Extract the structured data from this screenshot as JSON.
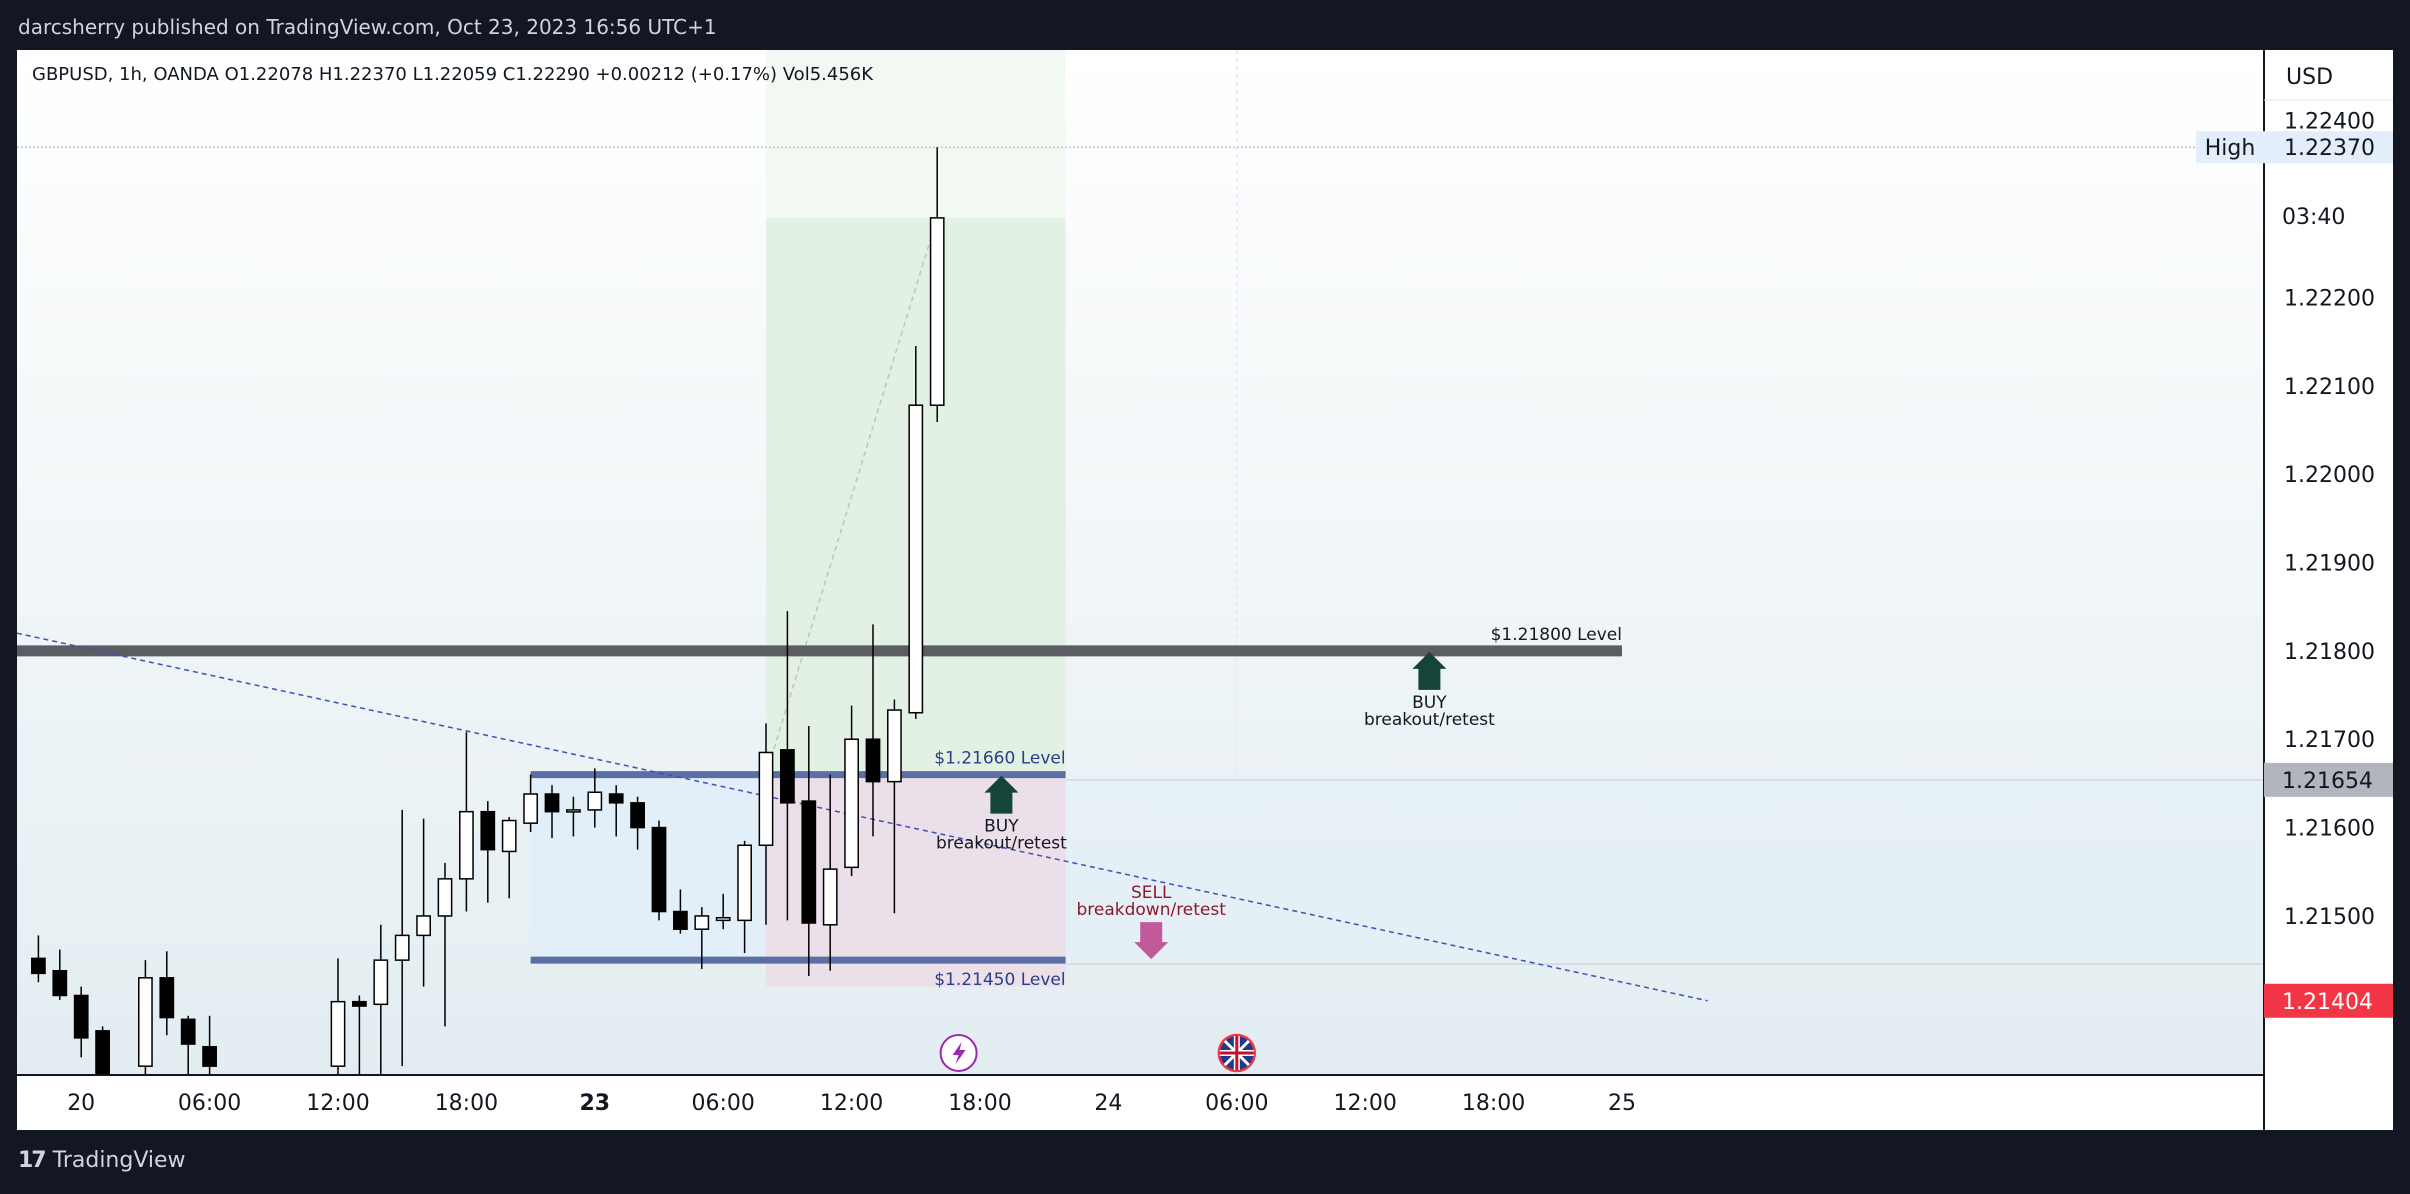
{
  "header": {
    "published": "darcsherry published on TradingView.com, Oct 23, 2023 16:56 UTC+1"
  },
  "footer": {
    "brand": "TradingView"
  },
  "chart_data": {
    "type": "candlestick",
    "symbol_line": "GBPUSD, 1h, OANDA  O1.22078  H1.22370  L1.22059  C1.22290  +0.00212 (+0.17%)  Vol5.456K",
    "currency": "USD",
    "ylim": [
      1.2132,
      1.2248
    ],
    "yticks": [
      1.224,
      1.223,
      1.222,
      1.221,
      1.22,
      1.219,
      1.218,
      1.217,
      1.216,
      1.215
    ],
    "xlim": [
      -3,
      102
    ],
    "xticks": [
      {
        "label": "20",
        "x": 0
      },
      {
        "label": "06:00",
        "x": 6
      },
      {
        "label": "12:00",
        "x": 12
      },
      {
        "label": "18:00",
        "x": 18
      },
      {
        "label": "23",
        "x": 24,
        "bold": true
      },
      {
        "label": "06:00",
        "x": 30
      },
      {
        "label": "12:00",
        "x": 36
      },
      {
        "label": "18:00",
        "x": 42
      },
      {
        "label": "24",
        "x": 48
      },
      {
        "label": "06:00",
        "x": 54
      },
      {
        "label": "12:00",
        "x": 60
      },
      {
        "label": "18:00",
        "x": 66
      },
      {
        "label": "25",
        "x": 72
      }
    ],
    "candles": [
      {
        "x": -2,
        "o": 1.21452,
        "h": 1.21478,
        "l": 1.21425,
        "c": 1.21435
      },
      {
        "x": -1,
        "o": 1.21438,
        "h": 1.21462,
        "l": 1.21405,
        "c": 1.2141
      },
      {
        "x": 0,
        "o": 1.2141,
        "h": 1.2142,
        "l": 1.2134,
        "c": 1.21362
      },
      {
        "x": 1,
        "o": 1.2137,
        "h": 1.21375,
        "l": 1.213,
        "c": 1.2132
      },
      {
        "x": 3,
        "o": 1.2133,
        "h": 1.2145,
        "l": 1.2131,
        "c": 1.2143
      },
      {
        "x": 4,
        "o": 1.2143,
        "h": 1.2146,
        "l": 1.21365,
        "c": 1.21385
      },
      {
        "x": 5,
        "o": 1.21383,
        "h": 1.21387,
        "l": 1.2131,
        "c": 1.21355
      },
      {
        "x": 6,
        "o": 1.21352,
        "h": 1.21387,
        "l": 1.21285,
        "c": 1.2133
      },
      {
        "x": 12,
        "o": 1.2133,
        "h": 1.21452,
        "l": 1.21305,
        "c": 1.21403
      },
      {
        "x": 13,
        "o": 1.21403,
        "h": 1.2141,
        "l": 1.213,
        "c": 1.21398
      },
      {
        "x": 14,
        "o": 1.214,
        "h": 1.2149,
        "l": 1.2132,
        "c": 1.2145
      },
      {
        "x": 15,
        "o": 1.2145,
        "h": 1.2162,
        "l": 1.2133,
        "c": 1.21478
      },
      {
        "x": 16,
        "o": 1.21478,
        "h": 1.2161,
        "l": 1.2142,
        "c": 1.215
      },
      {
        "x": 17,
        "o": 1.215,
        "h": 1.2156,
        "l": 1.21375,
        "c": 1.21542
      },
      {
        "x": 18,
        "o": 1.21542,
        "h": 1.21708,
        "l": 1.21505,
        "c": 1.21618
      },
      {
        "x": 19,
        "o": 1.21618,
        "h": 1.2163,
        "l": 1.21515,
        "c": 1.21575
      },
      {
        "x": 20,
        "o": 1.21573,
        "h": 1.21612,
        "l": 1.2152,
        "c": 1.21608
      },
      {
        "x": 21,
        "o": 1.21605,
        "h": 1.2166,
        "l": 1.21595,
        "c": 1.21638
      },
      {
        "x": 22,
        "o": 1.21638,
        "h": 1.21648,
        "l": 1.21588,
        "c": 1.21618
      },
      {
        "x": 23,
        "o": 1.21618,
        "h": 1.21635,
        "l": 1.2159,
        "c": 1.2162
      },
      {
        "x": 24,
        "o": 1.2162,
        "h": 1.21667,
        "l": 1.216,
        "c": 1.2164
      },
      {
        "x": 25,
        "o": 1.21638,
        "h": 1.21648,
        "l": 1.2159,
        "c": 1.21628
      },
      {
        "x": 26,
        "o": 1.21628,
        "h": 1.21635,
        "l": 1.21575,
        "c": 1.216
      },
      {
        "x": 27,
        "o": 1.216,
        "h": 1.21608,
        "l": 1.21495,
        "c": 1.21505
      },
      {
        "x": 28,
        "o": 1.21505,
        "h": 1.2153,
        "l": 1.2148,
        "c": 1.21485
      },
      {
        "x": 29,
        "o": 1.21485,
        "h": 1.2151,
        "l": 1.2144,
        "c": 1.215
      },
      {
        "x": 30,
        "o": 1.21495,
        "h": 1.21525,
        "l": 1.21485,
        "c": 1.21498
      },
      {
        "x": 31,
        "o": 1.21495,
        "h": 1.21585,
        "l": 1.21458,
        "c": 1.2158
      },
      {
        "x": 32,
        "o": 1.2158,
        "h": 1.21718,
        "l": 1.2149,
        "c": 1.21685
      },
      {
        "x": 33,
        "o": 1.21688,
        "h": 1.21845,
        "l": 1.21495,
        "c": 1.21628
      },
      {
        "x": 34,
        "o": 1.2163,
        "h": 1.21715,
        "l": 1.21432,
        "c": 1.21492
      },
      {
        "x": 35,
        "o": 1.2149,
        "h": 1.2166,
        "l": 1.21438,
        "c": 1.21553
      },
      {
        "x": 36,
        "o": 1.21555,
        "h": 1.21738,
        "l": 1.21545,
        "c": 1.217
      },
      {
        "x": 37,
        "o": 1.217,
        "h": 1.2183,
        "l": 1.2159,
        "c": 1.21652
      },
      {
        "x": 38,
        "o": 1.21652,
        "h": 1.21745,
        "l": 1.21503,
        "c": 1.21733
      },
      {
        "x": 39,
        "o": 1.2173,
        "h": 1.22145,
        "l": 1.21723,
        "c": 1.22078
      },
      {
        "x": 40,
        "o": 1.22078,
        "h": 1.2237,
        "l": 1.22059,
        "c": 1.2229
      }
    ],
    "levels": [
      {
        "price": 1.218,
        "label": "$1.21800 Level",
        "x_start": -3,
        "x_end": 72
      },
      {
        "price": 1.2166,
        "label": "$1.21660 Level",
        "x_start": 21,
        "x_end": 46
      },
      {
        "price": 1.2145,
        "label": "$1.21450 Level",
        "x_start": 21,
        "x_end": 46
      }
    ],
    "position_box": {
      "x_start": 32,
      "x_end": 46,
      "entry": 1.2166,
      "target": 1.2229,
      "stop": 1.2142
    },
    "trendline": {
      "x1": -3,
      "y1": 1.2182,
      "x2": 76,
      "y2": 1.21404
    },
    "high_line": {
      "price": 1.2237,
      "label": "High",
      "value": "1.22370"
    },
    "annotations": [
      {
        "type": "buy",
        "x": 43,
        "price": 1.2166,
        "title": "BUY",
        "subtitle": "breakout/retest"
      },
      {
        "type": "sell",
        "x": 50,
        "price": 1.2145,
        "title": "SELL",
        "subtitle": "breakdown/retest"
      },
      {
        "type": "buy",
        "x": 63,
        "price": 1.218,
        "title": "BUY",
        "subtitle": "breakout/retest"
      }
    ],
    "price_labels": [
      {
        "price": 1.21654,
        "text": "1.21654",
        "color": "#b2b5be",
        "text_color": "#131722"
      },
      {
        "price": 1.21404,
        "text": "1.21404",
        "color": "#f23645",
        "text_color": "#ffffff"
      }
    ],
    "countdown": "03:40",
    "event_icons": [
      {
        "x": 41,
        "name": "lightning-event-icon"
      },
      {
        "x": 54,
        "name": "uk-flag-event-icon"
      }
    ],
    "colors": {
      "up": "#ffffff",
      "down": "#000000",
      "level": "#5b6fa6",
      "major_level": "#5a5d64",
      "trendline": "#3f51b5",
      "profit_zone": "#e3f1e4",
      "loss_zone": "#ebe0ea",
      "range_zone": "#e2eef8",
      "buy_arrow": "#15443b",
      "sell_arrow": "#c2599b",
      "sell_text": "#8b1a2b"
    }
  }
}
